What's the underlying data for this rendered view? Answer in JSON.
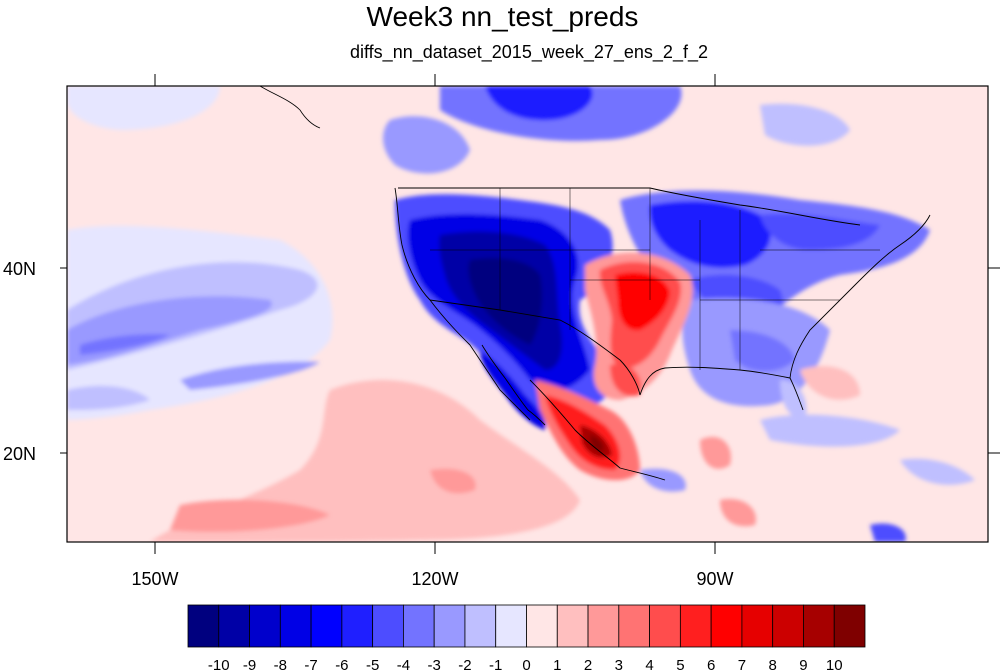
{
  "title": "Week3 nn_test_preds",
  "subtitle": "diffs_nn_dataset_2015_week_27_ens_2_f_2",
  "axes": {
    "x_ticks": [
      "150W",
      "120W",
      "90W"
    ],
    "y_ticks": [
      "40N",
      "20N"
    ]
  },
  "colorbar": {
    "labels": [
      "-10",
      "-9",
      "-8",
      "-7",
      "-6",
      "-5",
      "-4",
      "-3",
      "-2",
      "-1",
      "0",
      "1",
      "2",
      "3",
      "4",
      "5",
      "6",
      "7",
      "8",
      "9",
      "10"
    ],
    "colors": [
      "#00007f",
      "#0000a6",
      "#0000cc",
      "#0000e6",
      "#0000ff",
      "#1f1fff",
      "#4d4dff",
      "#7373ff",
      "#9999ff",
      "#bfbfff",
      "#e6e6ff",
      "#ffe6e6",
      "#ffbfbf",
      "#ff9999",
      "#ff7373",
      "#ff4d4d",
      "#ff1f1f",
      "#ff0000",
      "#e60000",
      "#cc0000",
      "#a60000",
      "#7f0000"
    ]
  },
  "chart_data": {
    "type": "heatmap",
    "title": "Week3 nn_test_preds",
    "subtitle": "diffs_nn_dataset_2015_week_27_ens_2_f_2",
    "lon_range": [
      -160,
      -60
    ],
    "lat_range": [
      10,
      60
    ],
    "x_ticks": [
      "150W",
      "120W",
      "90W"
    ],
    "y_ticks": [
      "40N",
      "20N"
    ],
    "levels": [
      -10,
      -9,
      -8,
      -7,
      -6,
      -5,
      -4,
      -3,
      -2,
      -1,
      0,
      1,
      2,
      3,
      4,
      5,
      6,
      7,
      8,
      9,
      10
    ],
    "regions": [
      {
        "area": "Western US (Great Basin / Southwest)",
        "value": -10
      },
      {
        "area": "Baja California / Sonora coast",
        "value": -7
      },
      {
        "area": "Southern Plains (Oklahoma / Texas)",
        "value": 6
      },
      {
        "area": "Central Mexico",
        "value": 9
      },
      {
        "area": "Great Lakes / Northeast US",
        "value": -5
      },
      {
        "area": "Southeast US",
        "value": -4
      },
      {
        "area": "Northern Canada edge",
        "value": -6
      },
      {
        "area": "Northeast Pacific subtropics",
        "value": -3
      },
      {
        "area": "Eastern Pacific south of 30N",
        "value": 1
      },
      {
        "area": "Caribbean Sea",
        "value": 2
      }
    ]
  }
}
